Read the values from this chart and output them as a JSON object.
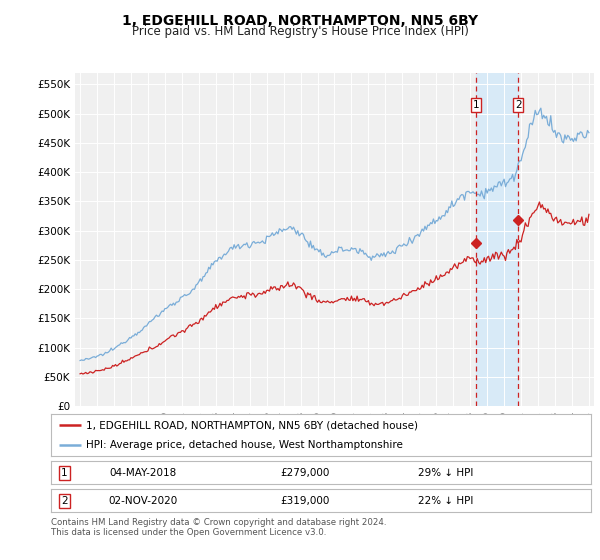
{
  "title": "1, EDGEHILL ROAD, NORTHAMPTON, NN5 6BY",
  "subtitle": "Price paid vs. HM Land Registry's House Price Index (HPI)",
  "legend_entry1": "1, EDGEHILL ROAD, NORTHAMPTON, NN5 6BY (detached house)",
  "legend_entry2": "HPI: Average price, detached house, West Northamptonshire",
  "ann1_label": "1",
  "ann1_date": "04-MAY-2018",
  "ann1_price": "£279,000",
  "ann1_hpi": "29% ↓ HPI",
  "ann1_x": 2018.35,
  "ann1_y": 279000,
  "ann2_label": "2",
  "ann2_date": "02-NOV-2020",
  "ann2_price": "£319,000",
  "ann2_hpi": "22% ↓ HPI",
  "ann2_x": 2020.83,
  "ann2_y": 319000,
  "footer": "Contains HM Land Registry data © Crown copyright and database right 2024.\nThis data is licensed under the Open Government Licence v3.0.",
  "ylim": [
    0,
    570000
  ],
  "yticks": [
    0,
    50000,
    100000,
    150000,
    200000,
    250000,
    300000,
    350000,
    400000,
    450000,
    500000,
    550000
  ],
  "ytick_labels": [
    "£0",
    "£50K",
    "£100K",
    "£150K",
    "£200K",
    "£250K",
    "£300K",
    "£350K",
    "£400K",
    "£450K",
    "£500K",
    "£550K"
  ],
  "xlim_left": 1994.7,
  "xlim_right": 2025.3,
  "background_color": "#ffffff",
  "plot_bg_color": "#f0f0f0",
  "grid_color": "#ffffff",
  "hpi_color": "#7aadd8",
  "price_color": "#cc2222",
  "vline_color": "#cc2222",
  "shade_color": "#d8eaf7",
  "title_fontsize": 10,
  "subtitle_fontsize": 8.5
}
